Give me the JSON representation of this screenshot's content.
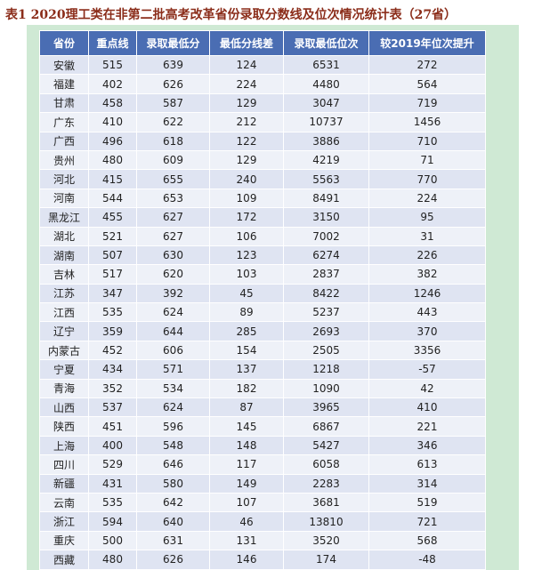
{
  "title": "表1 2020理工类在非第二批高考改革省份录取分数线及位次情况统计表（27省）",
  "table": {
    "header": [
      "省份",
      "重点线",
      "录取最低分",
      "最低分线差",
      "录取最低位次",
      "较2019年位次提升"
    ],
    "rows": [
      [
        "安徽",
        515,
        639,
        124,
        6531,
        272
      ],
      [
        "福建",
        402,
        626,
        224,
        4480,
        564
      ],
      [
        "甘肃",
        458,
        587,
        129,
        3047,
        719
      ],
      [
        "广东",
        410,
        622,
        212,
        10737,
        1456
      ],
      [
        "广西",
        496,
        618,
        122,
        3886,
        710
      ],
      [
        "贵州",
        480,
        609,
        129,
        4219,
        71
      ],
      [
        "河北",
        415,
        655,
        240,
        5563,
        770
      ],
      [
        "河南",
        544,
        653,
        109,
        8491,
        224
      ],
      [
        "黑龙江",
        455,
        627,
        172,
        3150,
        95
      ],
      [
        "湖北",
        521,
        627,
        106,
        7002,
        31
      ],
      [
        "湖南",
        507,
        630,
        123,
        6274,
        226
      ],
      [
        "吉林",
        517,
        620,
        103,
        2837,
        382
      ],
      [
        "江苏",
        347,
        392,
        45,
        8422,
        1246
      ],
      [
        "江西",
        535,
        624,
        89,
        5237,
        443
      ],
      [
        "辽宁",
        359,
        644,
        285,
        2693,
        370
      ],
      [
        "内蒙古",
        452,
        606,
        154,
        2505,
        3356
      ],
      [
        "宁夏",
        434,
        571,
        137,
        1218,
        -57
      ],
      [
        "青海",
        352,
        534,
        182,
        1090,
        42
      ],
      [
        "山西",
        537,
        624,
        87,
        3965,
        410
      ],
      [
        "陕西",
        451,
        596,
        145,
        6867,
        221
      ],
      [
        "上海",
        400,
        548,
        148,
        5427,
        346
      ],
      [
        "四川",
        529,
        646,
        117,
        6058,
        613
      ],
      [
        "新疆",
        431,
        580,
        149,
        2283,
        314
      ],
      [
        "云南",
        535,
        642,
        107,
        3681,
        519
      ],
      [
        "浙江",
        594,
        640,
        46,
        13810,
        721
      ],
      [
        "重庆",
        500,
        631,
        131,
        3520,
        568
      ],
      [
        "西藏",
        480,
        626,
        146,
        174,
        -48
      ]
    ]
  }
}
